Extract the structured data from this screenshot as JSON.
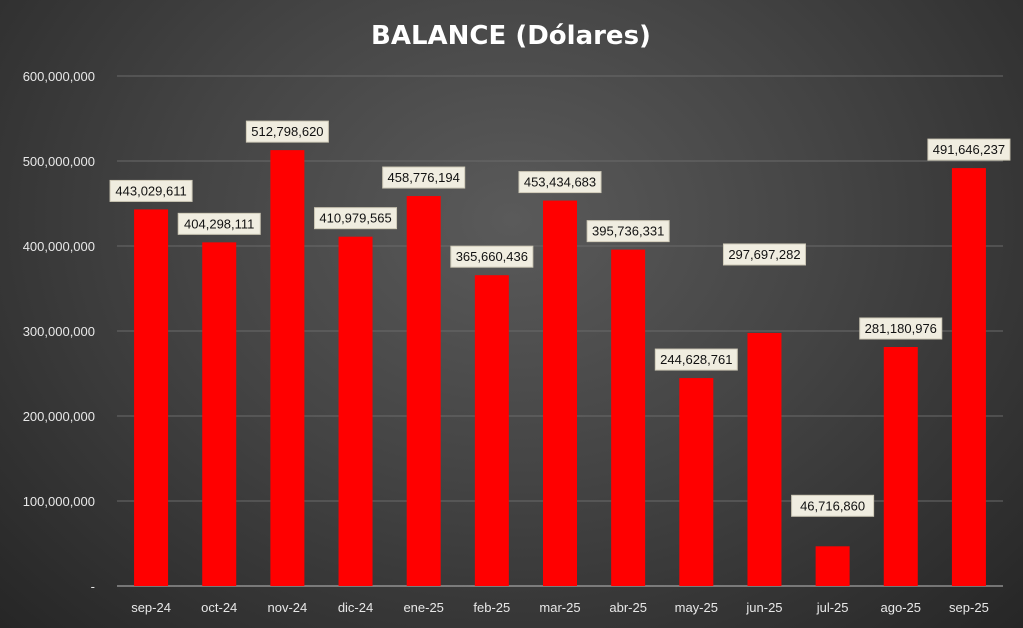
{
  "chart_data": {
    "type": "bar",
    "title": "BALANCE (Dólares)",
    "xlabel": "",
    "ylabel": "",
    "ylim": [
      0,
      600000000
    ],
    "yticks": [
      {
        "value": 0,
        "label": "-"
      },
      {
        "value": 100000000,
        "label": "100,000,000"
      },
      {
        "value": 200000000,
        "label": "200,000,000"
      },
      {
        "value": 300000000,
        "label": "300,000,000"
      },
      {
        "value": 400000000,
        "label": "400,000,000"
      },
      {
        "value": 500000000,
        "label": "500,000,000"
      },
      {
        "value": 600000000,
        "label": "600,000,000"
      }
    ],
    "grid": true,
    "categories": [
      "sep-24",
      "oct-24",
      "nov-24",
      "dic-24",
      "ene-25",
      "feb-25",
      "mar-25",
      "abr-25",
      "may-25",
      "jun-25",
      "jul-25",
      "ago-25",
      "sep-25"
    ],
    "values": [
      443029611,
      404298111,
      512798620,
      410979565,
      458776194,
      365660436,
      453434683,
      395736331,
      244628761,
      297697282,
      46716860,
      281180976,
      491646237
    ],
    "data_labels": [
      "443,029,611",
      "404,298,111",
      "512,798,620",
      "410,979,565",
      "458,776,194",
      "365,660,436",
      "453,434,683",
      "395,736,331",
      "244,628,761",
      "297,697,282",
      "46,716,860",
      "281,180,976",
      "491,646,237"
    ],
    "colors": {
      "bar": "#ff0000",
      "label_bg": "#f0ede0",
      "background": "#444444"
    }
  }
}
